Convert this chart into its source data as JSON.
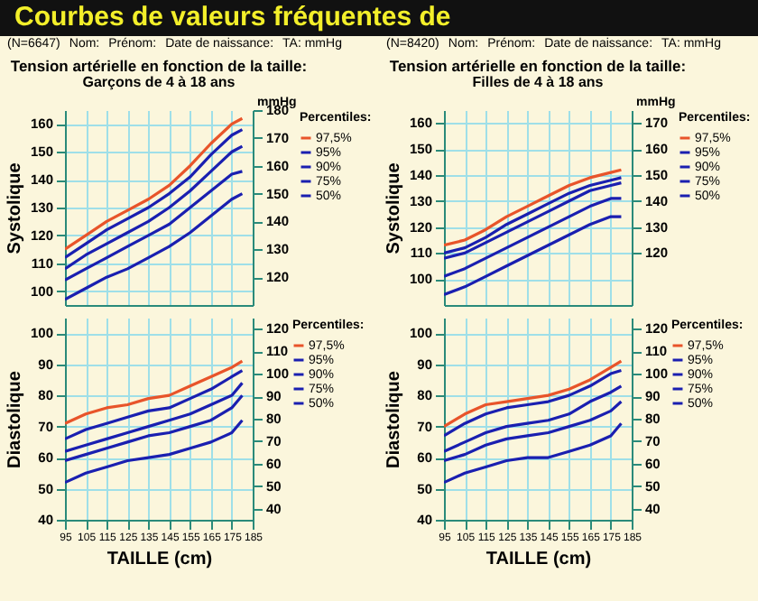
{
  "chart_data": [
    {
      "type": "line",
      "title": "Tension artérielle en fonction de la taille:",
      "subtitle": "Garçons de 4 à 18 ans",
      "ylabel": "Systolique",
      "legend_title": "Percentiles:",
      "legend": "right",
      "grid": true,
      "tick_labels": "y",
      "annotations": [
        "Courbes de valeurs fréquentes de",
        "(N=6647)",
        "Nom:",
        "Prénom:",
        "Date de naissance:",
        "TA: mmHg"
      ],
      "x": [
        95,
        105,
        115,
        125,
        135,
        145,
        155,
        165,
        175,
        180
      ],
      "xlim": [
        95,
        185
      ],
      "xticks": [
        95,
        105,
        115,
        125,
        135,
        145,
        155,
        165,
        175,
        185
      ],
      "ylim": [
        95,
        165
      ],
      "yticks": [
        100,
        110,
        120,
        130,
        140,
        150,
        160
      ],
      "y2label": "mmHg",
      "y2lim": [
        110,
        180
      ],
      "y2ticks": [
        120,
        130,
        140,
        150,
        160,
        170,
        180
      ],
      "series": [
        {
          "name": "97,5%",
          "color": "#e8542a",
          "values": [
            115,
            120,
            125,
            129,
            133,
            138,
            145,
            153,
            160,
            162
          ]
        },
        {
          "name": "95%",
          "color": "#1a1fb0",
          "values": [
            112,
            117,
            122,
            126,
            130,
            135,
            141,
            149,
            156,
            158
          ]
        },
        {
          "name": "90%",
          "color": "#1a1fb0",
          "values": [
            108,
            113,
            117,
            121,
            125,
            130,
            136,
            143,
            150,
            152
          ]
        },
        {
          "name": "75%",
          "color": "#1a1fb0",
          "values": [
            104,
            108,
            112,
            116,
            120,
            124,
            130,
            136,
            142,
            143
          ]
        },
        {
          "name": "50%",
          "color": "#1a1fb0",
          "values": [
            97,
            101,
            105,
            108,
            112,
            116,
            121,
            127,
            133,
            135
          ]
        }
      ]
    },
    {
      "type": "line",
      "title": "Tension artérielle en fonction de la taille:",
      "subtitle": "Filles de 4 à 18 ans",
      "ylabel": "Systolique",
      "legend_title": "Percentiles:",
      "legend": "right",
      "grid": true,
      "tick_labels": "y",
      "annotations": [
        "(N=8420)",
        "Nom:",
        "Prénom:",
        "Date de naissance:",
        "TA: mmHg"
      ],
      "x": [
        95,
        105,
        115,
        125,
        135,
        145,
        155,
        165,
        175,
        180
      ],
      "xlim": [
        95,
        185
      ],
      "xticks": [
        95,
        105,
        115,
        125,
        135,
        145,
        155,
        165,
        175,
        185
      ],
      "ylim": [
        90,
        165
      ],
      "yticks": [
        100,
        110,
        120,
        130,
        140,
        150,
        160
      ],
      "y2label": "mmHg",
      "y2lim": [
        100,
        175
      ],
      "y2ticks": [
        120,
        130,
        140,
        150,
        160,
        170
      ],
      "series": [
        {
          "name": "97,5%",
          "color": "#e8542a",
          "values": [
            113,
            115,
            119,
            124,
            128,
            132,
            136,
            139,
            141,
            142
          ]
        },
        {
          "name": "95%",
          "color": "#1a1fb0",
          "values": [
            110,
            112,
            116,
            121,
            125,
            129,
            133,
            136,
            138,
            139
          ]
        },
        {
          "name": "90%",
          "color": "#1a1fb0",
          "values": [
            108,
            110,
            114,
            118,
            122,
            126,
            130,
            134,
            136,
            137
          ]
        },
        {
          "name": "75%",
          "color": "#1a1fb0",
          "values": [
            101,
            104,
            108,
            112,
            116,
            120,
            124,
            128,
            131,
            131
          ]
        },
        {
          "name": "50%",
          "color": "#1a1fb0",
          "values": [
            94,
            97,
            101,
            105,
            109,
            113,
            117,
            121,
            124,
            124
          ]
        }
      ]
    },
    {
      "type": "line",
      "xlabel": "TAILLE (cm)",
      "ylabel": "Diastolique",
      "legend_title": "Percentiles:",
      "legend": "right",
      "grid": true,
      "x": [
        95,
        105,
        115,
        125,
        135,
        145,
        155,
        165,
        175,
        180
      ],
      "xlim": [
        95,
        185
      ],
      "xticks": [
        95,
        105,
        115,
        125,
        135,
        145,
        155,
        165,
        175,
        185
      ],
      "ylim": [
        40,
        105
      ],
      "yticks": [
        40,
        50,
        60,
        70,
        80,
        90,
        100
      ],
      "y2lim": [
        35,
        125
      ],
      "y2ticks": [
        40,
        50,
        60,
        70,
        80,
        90,
        100,
        110,
        120
      ],
      "series": [
        {
          "name": "97,5%",
          "color": "#e8542a",
          "values": [
            71,
            74,
            76,
            77,
            79,
            80,
            83,
            86,
            89,
            91
          ]
        },
        {
          "name": "95%",
          "color": "#1a1fb0",
          "values": [
            66,
            69,
            71,
            73,
            75,
            76,
            79,
            82,
            86,
            88
          ]
        },
        {
          "name": "90%",
          "color": "#1a1fb0",
          "values": [
            62,
            64,
            66,
            68,
            70,
            72,
            74,
            77,
            80,
            84
          ]
        },
        {
          "name": "75%",
          "color": "#1a1fb0",
          "values": [
            59,
            61,
            63,
            65,
            67,
            68,
            70,
            72,
            76,
            80
          ]
        },
        {
          "name": "50%",
          "color": "#1a1fb0",
          "values": [
            52,
            55,
            57,
            59,
            60,
            61,
            63,
            65,
            68,
            72
          ]
        }
      ]
    },
    {
      "type": "line",
      "xlabel": "TAILLE (cm)",
      "ylabel": "Diastolique",
      "legend_title": "Percentiles:",
      "legend": "right",
      "grid": true,
      "x": [
        95,
        105,
        115,
        125,
        135,
        145,
        155,
        165,
        175,
        180
      ],
      "xlim": [
        95,
        185
      ],
      "xticks": [
        95,
        105,
        115,
        125,
        135,
        145,
        155,
        165,
        175,
        185
      ],
      "ylim": [
        40,
        105
      ],
      "yticks": [
        40,
        50,
        60,
        70,
        80,
        90,
        100
      ],
      "y2lim": [
        35,
        125
      ],
      "y2ticks": [
        40,
        50,
        60,
        70,
        80,
        90,
        100,
        110,
        120
      ],
      "series": [
        {
          "name": "97,5%",
          "color": "#e8542a",
          "values": [
            70,
            74,
            77,
            78,
            79,
            80,
            82,
            85,
            89,
            91
          ]
        },
        {
          "name": "95%",
          "color": "#1a1fb0",
          "values": [
            67,
            71,
            74,
            76,
            77,
            78,
            80,
            83,
            87,
            88
          ]
        },
        {
          "name": "90%",
          "color": "#1a1fb0",
          "values": [
            62,
            65,
            68,
            70,
            71,
            72,
            74,
            78,
            81,
            83
          ]
        },
        {
          "name": "75%",
          "color": "#1a1fb0",
          "values": [
            59,
            61,
            64,
            66,
            67,
            68,
            70,
            72,
            75,
            78
          ]
        },
        {
          "name": "50%",
          "color": "#1a1fb0",
          "values": [
            52,
            55,
            57,
            59,
            60,
            60,
            62,
            64,
            67,
            71
          ]
        }
      ]
    }
  ]
}
